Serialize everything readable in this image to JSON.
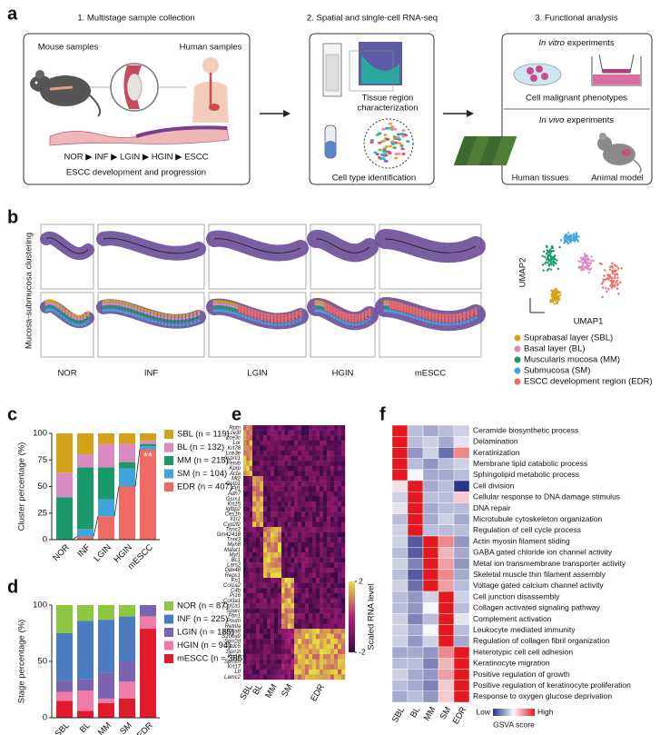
{
  "panel_a": {
    "label": "a",
    "steps": [
      "1. Multistage sample collection",
      "2. Spatial and single-cell RNA-seq",
      "3. Functional analysis"
    ],
    "mouse": "Mouse samples",
    "human": "Human samples",
    "stages": "NOR ▶ INF ▶ LGIN ▶ HGIN ▶ ESCC",
    "progression": "ESCC development and progression",
    "tissue": [
      "Tissue region",
      "characterization"
    ],
    "cell_type": "Cell type identification",
    "in_vitro": [
      "In vitro",
      "experiments"
    ],
    "malignant": "Cell malignant phenotypes",
    "in_vivo": [
      "In vivo",
      "experiments"
    ],
    "human_tissues": "Human tissues",
    "animal": "Animal model"
  },
  "panel_b": {
    "label": "b",
    "side": "Mucosa-submucosa clustering",
    "stages": [
      "NOR",
      "INF",
      "LGIN",
      "HGIN",
      "mESCC"
    ],
    "umap_x": "UMAP1",
    "umap_y": "UMAP2",
    "legend": [
      {
        "name": "Suprabasal layer (SBL)",
        "color": "#d4a21a"
      },
      {
        "name": "Basal layer (BL)",
        "color": "#d98ac3"
      },
      {
        "name": "Muscularis mucosa (MM)",
        "color": "#1a9a6a"
      },
      {
        "name": "Submucosa (SM)",
        "color": "#40a4dc"
      },
      {
        "name": "ESCC development region (EDR)",
        "color": "#ef6a62"
      }
    ]
  },
  "chart_data": [
    {
      "type": "bar",
      "stacked": true,
      "label": "c",
      "ylabel": "Cluster percentage (%)",
      "categories": [
        "NOR",
        "INF",
        "LGIN",
        "HGIN",
        "mESCC"
      ],
      "series": [
        {
          "name": "SBL (n = 119)",
          "color": "#d4a21a",
          "values": [
            37,
            20,
            10,
            10,
            7
          ]
        },
        {
          "name": "BL (n = 132)",
          "color": "#d98ac3",
          "values": [
            23,
            12,
            22,
            17,
            3
          ]
        },
        {
          "name": "MM (n = 215)",
          "color": "#1a9a6a",
          "values": [
            40,
            58,
            30,
            6,
            2
          ]
        },
        {
          "name": "SM (n = 104)",
          "color": "#40a4dc",
          "values": [
            0,
            7,
            16,
            17,
            3
          ]
        },
        {
          "name": "EDR (n = 407)",
          "color": "#ef6a62",
          "values": [
            0,
            3,
            22,
            50,
            85
          ]
        }
      ],
      "ylim": [
        0,
        100
      ],
      "yticks": [
        0,
        25,
        50,
        75,
        100
      ],
      "annotation": "**"
    },
    {
      "type": "bar",
      "stacked": true,
      "label": "d",
      "ylabel": "Stage percentage (%)",
      "categories": [
        "SBL",
        "BL",
        "MM",
        "SM",
        "EDR"
      ],
      "series": [
        {
          "name": "NOR (n = 87)",
          "color": "#8dc641",
          "values": [
            25,
            14,
            13,
            10,
            0
          ]
        },
        {
          "name": "INF (n = 225)",
          "color": "#4b7cc2",
          "values": [
            42,
            52,
            47,
            40,
            0
          ]
        },
        {
          "name": "LGIN (n = 185)",
          "color": "#7a64b0",
          "values": [
            10,
            10,
            23,
            18,
            10
          ]
        },
        {
          "name": "HGIN (n = 94)",
          "color": "#f07aa8",
          "values": [
            8,
            18,
            4,
            15,
            11
          ]
        },
        {
          "name": "mESCC (n = 386)",
          "color": "#e11b2b",
          "values": [
            15,
            6,
            13,
            17,
            79
          ]
        }
      ],
      "ylim": [
        0,
        100
      ],
      "yticks": [
        0,
        50,
        100
      ]
    },
    {
      "type": "heatmap",
      "label": "f",
      "columns": [
        "SBL",
        "BL",
        "MM",
        "SM",
        "EDR"
      ],
      "rows": [
        "Ceramide biosynthetic process",
        "Delamination",
        "Keratinization",
        "Membrane lipid catabolic process",
        "Sphingolipid metabolic process",
        "Cell division",
        "Cellular response to DNA damage stimulus",
        "DNA repair",
        "Microtubule cytoskeleton organization",
        "Regulation of cell cycle process",
        "Actin myosin filament sliding",
        "GABA gated chloride ion channel activity",
        "Metal ion transmembrane transporter activity",
        "Skeletal muscle thin filament assembly",
        "Voltage gated calcium channel activity",
        "Cell junction disassembly",
        "Collagen activated signaling pathway",
        "Complement activation",
        "Leukocyte mediated immunity",
        "Regulation of collagen fibril organization",
        "Heterotypic cell cell adhesion",
        "Keratinocyte migration",
        "Positive regulation of growth",
        "Positive regulation of keratinocyte proliferation",
        "Response to oxygen glucose deprivation"
      ],
      "values": [
        [
          1,
          -0.3,
          -0.4,
          -0.3,
          -0.2
        ],
        [
          1,
          -0.3,
          -0.2,
          -0.4,
          -0.1
        ],
        [
          1,
          -0.5,
          -0.2,
          -0.7,
          0.5
        ],
        [
          1,
          -0.3,
          -0.5,
          -0.3,
          -0.2
        ],
        [
          1,
          0,
          -0.4,
          -0.4,
          -0.3
        ],
        [
          0.1,
          1,
          -0.4,
          -0.3,
          -1
        ],
        [
          -0.2,
          1,
          -0.3,
          -0.3,
          0.2
        ],
        [
          -0.1,
          1,
          -0.4,
          -0.3,
          -0.3
        ],
        [
          -0.3,
          1,
          -0.4,
          -0.2,
          -0.4
        ],
        [
          -0.2,
          1,
          -0.3,
          -0.3,
          -0.3
        ],
        [
          -0.2,
          -0.8,
          1,
          0.5,
          -0.5
        ],
        [
          -0.3,
          -0.8,
          1,
          0.3,
          -0.4
        ],
        [
          -0.2,
          -0.6,
          1,
          0.4,
          -0.5
        ],
        [
          -0.3,
          -0.8,
          1,
          0.5,
          -0.4
        ],
        [
          -0.2,
          -0.7,
          1,
          0.4,
          -0.3
        ],
        [
          -0.3,
          -0.5,
          -0.2,
          1,
          -0.2
        ],
        [
          -0.3,
          -0.5,
          0,
          1,
          -0.3
        ],
        [
          -0.2,
          -0.6,
          -0.3,
          1,
          -0.1
        ],
        [
          -0.2,
          -0.4,
          0,
          1,
          -0.3
        ],
        [
          -0.2,
          -0.5,
          -0.2,
          1,
          -0.4
        ],
        [
          -0.4,
          -0.4,
          -0.5,
          0.5,
          1
        ],
        [
          -0.3,
          -0.3,
          -0.6,
          0.3,
          1
        ],
        [
          -0.2,
          -0.4,
          -0.5,
          0.4,
          1
        ],
        [
          -0.3,
          -0.4,
          -0.6,
          0.2,
          1
        ],
        [
          -0.4,
          -0.3,
          -0.5,
          0.2,
          1
        ]
      ],
      "zlim": [
        -1,
        1
      ],
      "colors": [
        "#2c3489",
        "#f7f7fb",
        "#e3191f"
      ],
      "legend": {
        "low": "Low",
        "high": "High",
        "title": "GSVA score"
      }
    }
  ],
  "panel_e": {
    "label": "e",
    "genes": [
      "Rptn",
      "Lce3f",
      "Lce3c",
      "Lor",
      "Krt78",
      "Lce3e",
      "Asprv1",
      "Fetub",
      "Kprp",
      "Acta",
      "Mt2",
      "Gstp1",
      "Ftl1",
      "Adh7",
      "Gsm1",
      "Krt15",
      "Igfbp2",
      "Ces1h",
      "Il1r2",
      "Cyp2f2",
      "Tnnc2",
      "Gm42418",
      "Tnnt3",
      "Myh8",
      "Malat1",
      "Myl1",
      "Bc1",
      "Lars2",
      "Ddx48",
      "Reps1",
      "Fn1",
      "Col1a2",
      "C4b",
      "Pi16",
      "Col3a1",
      "Col1a1",
      "Sparc",
      "Fbn1",
      "Postn",
      "Retnla",
      "S100a8",
      "S100a9",
      "Sprr2d",
      "Cstdc5",
      "Sprr2i",
      "Krt16",
      "Sprr2h",
      "Krt17",
      "Ltf",
      "Lamc2"
    ],
    "categories": [
      "SBL",
      "BL",
      "MM",
      "SM",
      "EDR"
    ],
    "colorbar": {
      "label": "Scaled RNA level",
      "zlim": [
        -2,
        2
      ],
      "ticks": [
        2,
        -2
      ]
    }
  }
}
